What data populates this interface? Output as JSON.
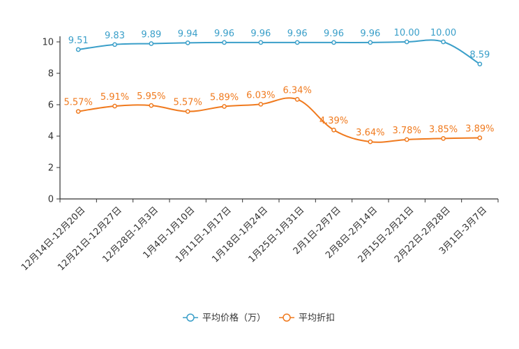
{
  "chart_data": {
    "type": "line",
    "categories": [
      "12月14日-12月20日",
      "12月21日-12月27日",
      "12月28日-1月3日",
      "1月4日-1月10日",
      "1月11日-1月17日",
      "1月18日-1月24日",
      "1月25日-1月31日",
      "2月1日-2月7日",
      "2月8日-2月14日",
      "2月15日-2月21日",
      "2月22日-2月28日",
      "3月1日-3月7日"
    ],
    "series": [
      {
        "name": "平均价格（万）",
        "color": "#3a9fc9",
        "values": [
          9.51,
          9.83,
          9.89,
          9.94,
          9.96,
          9.96,
          9.96,
          9.96,
          9.96,
          10.0,
          10.0,
          8.59
        ],
        "labels": [
          "9.51",
          "9.83",
          "9.89",
          "9.94",
          "9.96",
          "9.96",
          "9.96",
          "9.96",
          "9.96",
          "10.00",
          "10.00",
          "8.59"
        ]
      },
      {
        "name": "平均折扣",
        "color": "#f07a1e",
        "values": [
          5.57,
          5.91,
          5.95,
          5.57,
          5.89,
          6.03,
          6.34,
          4.39,
          3.64,
          3.78,
          3.85,
          3.89
        ],
        "labels": [
          "5.57%",
          "5.91%",
          "5.95%",
          "5.57%",
          "5.89%",
          "6.03%",
          "6.34%",
          "4.39%",
          "3.64%",
          "3.78%",
          "3.85%",
          "3.89%"
        ]
      }
    ],
    "yticks": [
      "0",
      "2",
      "4",
      "6",
      "8",
      "10"
    ],
    "ylim": [
      0,
      10
    ],
    "grid": false,
    "legend_position": "bottom-center",
    "title": "",
    "xlabel": "",
    "ylabel": ""
  }
}
